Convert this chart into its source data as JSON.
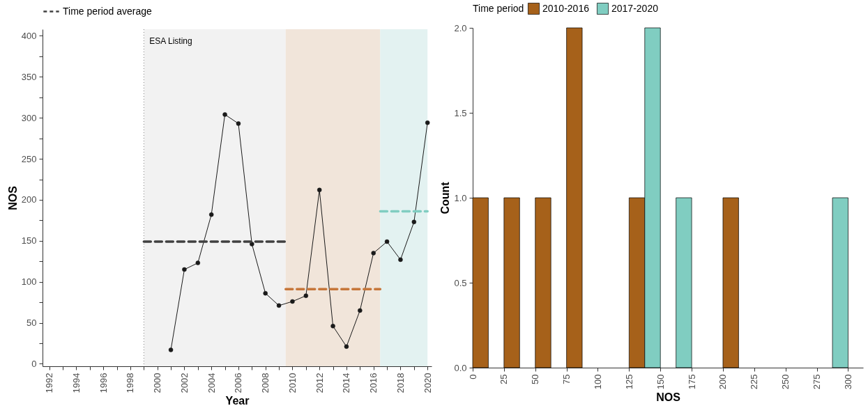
{
  "chart_data": [
    {
      "type": "line",
      "xlabel": "Year",
      "ylabel": "NOS",
      "legend": "top",
      "grid": false,
      "xlim": [
        1991.5,
        2020.3
      ],
      "xticks": [
        1992,
        {
          "value": 1993,
          "label": null
        },
        1994,
        {
          "value": 1995,
          "label": null
        },
        1996,
        {
          "value": 1997,
          "label": null
        },
        1998,
        {
          "value": 1999,
          "label": null
        },
        2000,
        {
          "value": 2001,
          "label": null
        },
        2002,
        {
          "value": 2003,
          "label": null
        },
        2004,
        {
          "value": 2005,
          "label": null
        },
        2006,
        {
          "value": 2007,
          "label": null
        },
        2008,
        {
          "value": 2009,
          "label": null
        },
        2010,
        {
          "value": 2011,
          "label": null
        },
        2012,
        {
          "value": 2013,
          "label": null
        },
        2014,
        {
          "value": 2015,
          "label": null
        },
        2016,
        {
          "value": 2017,
          "label": null
        },
        2018,
        {
          "value": 2019,
          "label": null
        },
        2020
      ],
      "ylim": [
        -3,
        408
      ],
      "yticks": [
        0,
        {
          "value": 25,
          "label": null
        },
        50,
        {
          "value": 75,
          "label": null
        },
        100,
        {
          "value": 125,
          "label": null
        },
        150,
        {
          "value": 175,
          "label": null
        },
        200,
        {
          "value": 225,
          "label": null
        },
        250,
        {
          "value": 275,
          "label": null
        },
        300,
        {
          "value": 325,
          "label": null
        },
        350,
        {
          "value": 375,
          "label": null
        },
        400
      ],
      "bands": [
        {
          "axis": "x",
          "from": 1999,
          "to": 2009.5,
          "label": null,
          "color": "#f2f2f2"
        },
        {
          "axis": "x",
          "from": 2009.5,
          "to": 2016.5,
          "label": null,
          "color": "#f1e5da"
        },
        {
          "axis": "x",
          "from": 2016.5,
          "to": 2020,
          "label": null,
          "color": "#e3f2f1"
        }
      ],
      "ref_lines": [
        {
          "axis": "x",
          "value": 1999,
          "label": "ESA Listing",
          "color": "#808080",
          "line_style": "dotted"
        }
      ],
      "series": [
        {
          "color": "#1a1a1a",
          "marker": "circle",
          "line_style": "solid",
          "x": [
            2001,
            2002,
            2003,
            2004,
            2005,
            2006,
            2007,
            2008,
            2009,
            2010,
            2011,
            2012,
            2013,
            2014,
            2015,
            2016,
            2017,
            2018,
            2019,
            2020
          ],
          "values": [
            17,
            115,
            123,
            182,
            304,
            293,
            146,
            86,
            71,
            76,
            83,
            212,
            46,
            21,
            65,
            135,
            149,
            127,
            173,
            294
          ]
        },
        {
          "name": "Time period average",
          "color": "#404040",
          "marker": "none",
          "line_style": "dashed",
          "x": [
            1999,
            2009.5
          ],
          "values": [
            149,
            149
          ]
        },
        {
          "color": "#c6763a",
          "marker": "none",
          "line_style": "dashed",
          "x": [
            2009.5,
            2016.5
          ],
          "values": [
            91,
            91
          ]
        },
        {
          "color": "#80cdc1",
          "marker": "none",
          "line_style": "dashed",
          "x": [
            2016.5,
            2020
          ],
          "values": [
            186,
            186
          ]
        }
      ]
    },
    {
      "type": "histogram",
      "xlabel": "NOS",
      "ylabel": "Count",
      "legend_title": "Time period",
      "legend": "top",
      "grid": false,
      "bins": [
        0,
        25,
        50,
        75,
        100,
        125,
        150,
        175,
        200,
        225,
        250,
        275,
        300
      ],
      "xlim": [
        0,
        312
      ],
      "xticks": [
        0,
        25,
        50,
        75,
        100,
        125,
        150,
        175,
        200,
        225,
        250,
        275,
        300
      ],
      "ylim": [
        0,
        2
      ],
      "yticks": [
        {
          "value": 0,
          "label": "0.0"
        },
        {
          "value": 0.5,
          "label": "0.5"
        },
        {
          "value": 1,
          "label": "1.0"
        },
        {
          "value": 1.5,
          "label": "1.5"
        },
        {
          "value": 2,
          "label": "2.0"
        }
      ],
      "series": [
        {
          "name": "2010-2016",
          "color": "#a6611a",
          "values": [
            1,
            1,
            1,
            2,
            0,
            1,
            0,
            0,
            1,
            0,
            0,
            0
          ]
        },
        {
          "name": "2017-2020",
          "color": "#80cdc1",
          "values": [
            0,
            0,
            0,
            0,
            0,
            2,
            1,
            0,
            0,
            0,
            0,
            1
          ]
        }
      ]
    }
  ]
}
